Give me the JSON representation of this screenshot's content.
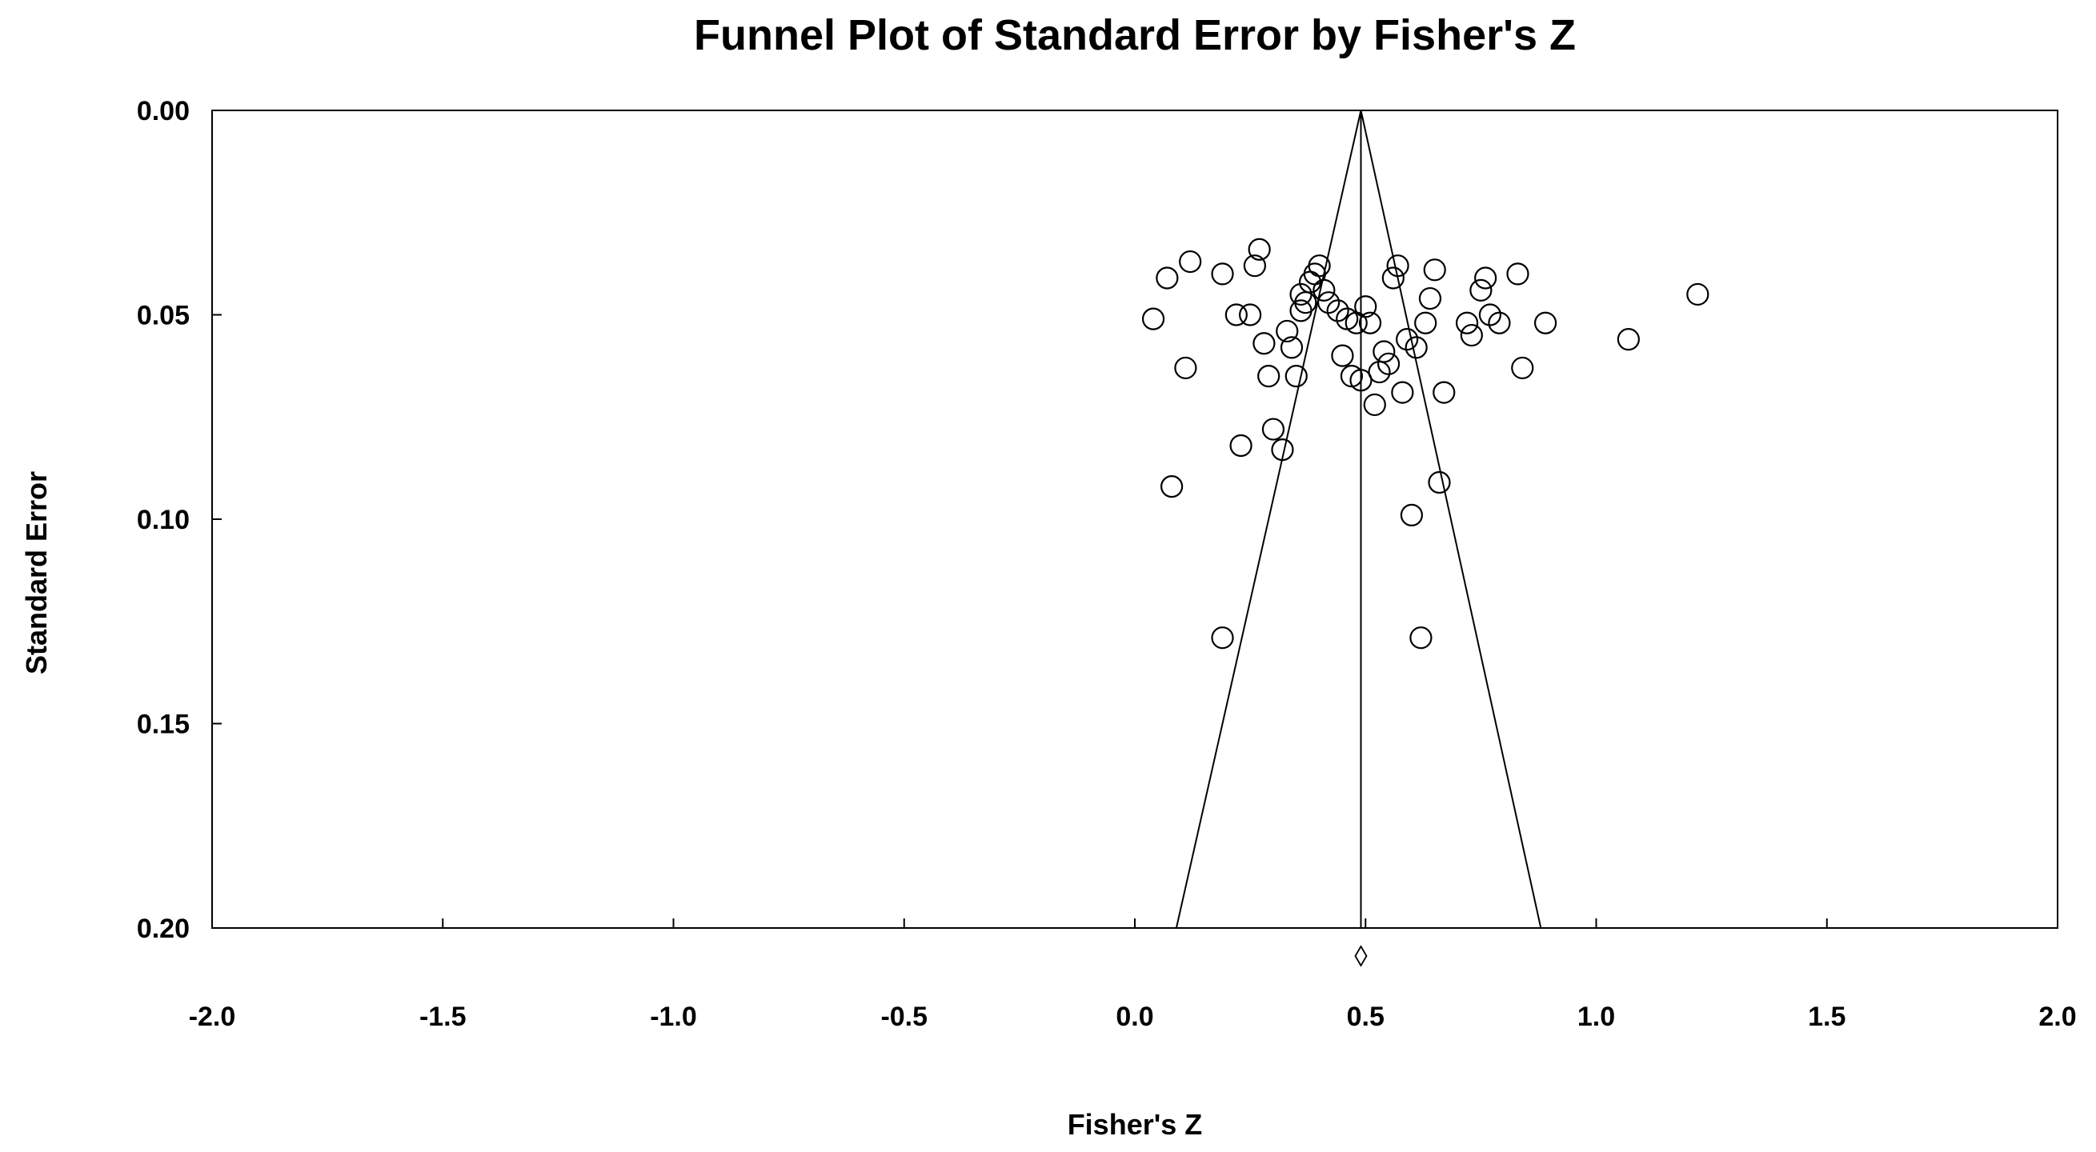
{
  "chart_data": {
    "type": "scatter",
    "title": "Funnel Plot of Standard Error by Fisher's Z",
    "xlabel": "Fisher's Z",
    "ylabel": "Standard Error",
    "xlim": [
      -2.0,
      2.0
    ],
    "ylim": [
      0.0,
      0.2
    ],
    "y_inverted": true,
    "x_ticks": [
      "-2.0",
      "-1.5",
      "-1.0",
      "-0.5",
      "0.0",
      "0.5",
      "1.0",
      "1.5",
      "2.0"
    ],
    "y_ticks": [
      "0.00",
      "0.05",
      "0.10",
      "0.15",
      "0.20"
    ],
    "grid": false,
    "legend": "none",
    "summary_effect": 0.49,
    "funnel": {
      "apex": [
        0.49,
        0.0
      ],
      "left_base": [
        0.09,
        0.2
      ],
      "right_base": [
        0.88,
        0.2
      ]
    },
    "points": [
      {
        "x": 0.04,
        "y": 0.051
      },
      {
        "x": 0.07,
        "y": 0.041
      },
      {
        "x": 0.08,
        "y": 0.092
      },
      {
        "x": 0.11,
        "y": 0.063
      },
      {
        "x": 0.12,
        "y": 0.037
      },
      {
        "x": 0.19,
        "y": 0.04
      },
      {
        "x": 0.19,
        "y": 0.129
      },
      {
        "x": 0.22,
        "y": 0.05
      },
      {
        "x": 0.23,
        "y": 0.082
      },
      {
        "x": 0.25,
        "y": 0.05
      },
      {
        "x": 0.26,
        "y": 0.038
      },
      {
        "x": 0.27,
        "y": 0.034
      },
      {
        "x": 0.28,
        "y": 0.057
      },
      {
        "x": 0.29,
        "y": 0.065
      },
      {
        "x": 0.3,
        "y": 0.078
      },
      {
        "x": 0.32,
        "y": 0.083
      },
      {
        "x": 0.33,
        "y": 0.054
      },
      {
        "x": 0.34,
        "y": 0.058
      },
      {
        "x": 0.35,
        "y": 0.065
      },
      {
        "x": 0.36,
        "y": 0.045
      },
      {
        "x": 0.36,
        "y": 0.049
      },
      {
        "x": 0.37,
        "y": 0.047
      },
      {
        "x": 0.38,
        "y": 0.042
      },
      {
        "x": 0.39,
        "y": 0.04
      },
      {
        "x": 0.4,
        "y": 0.038
      },
      {
        "x": 0.41,
        "y": 0.044
      },
      {
        "x": 0.42,
        "y": 0.047
      },
      {
        "x": 0.44,
        "y": 0.049
      },
      {
        "x": 0.45,
        "y": 0.06
      },
      {
        "x": 0.46,
        "y": 0.051
      },
      {
        "x": 0.47,
        "y": 0.065
      },
      {
        "x": 0.48,
        "y": 0.052
      },
      {
        "x": 0.49,
        "y": 0.066
      },
      {
        "x": 0.5,
        "y": 0.048
      },
      {
        "x": 0.51,
        "y": 0.052
      },
      {
        "x": 0.52,
        "y": 0.072
      },
      {
        "x": 0.53,
        "y": 0.064
      },
      {
        "x": 0.54,
        "y": 0.059
      },
      {
        "x": 0.55,
        "y": 0.062
      },
      {
        "x": 0.56,
        "y": 0.041
      },
      {
        "x": 0.57,
        "y": 0.038
      },
      {
        "x": 0.58,
        "y": 0.069
      },
      {
        "x": 0.59,
        "y": 0.056
      },
      {
        "x": 0.6,
        "y": 0.099
      },
      {
        "x": 0.61,
        "y": 0.058
      },
      {
        "x": 0.62,
        "y": 0.129
      },
      {
        "x": 0.63,
        "y": 0.052
      },
      {
        "x": 0.64,
        "y": 0.046
      },
      {
        "x": 0.65,
        "y": 0.039
      },
      {
        "x": 0.66,
        "y": 0.091
      },
      {
        "x": 0.67,
        "y": 0.069
      },
      {
        "x": 0.72,
        "y": 0.052
      },
      {
        "x": 0.73,
        "y": 0.055
      },
      {
        "x": 0.75,
        "y": 0.044
      },
      {
        "x": 0.76,
        "y": 0.041
      },
      {
        "x": 0.77,
        "y": 0.05
      },
      {
        "x": 0.79,
        "y": 0.052
      },
      {
        "x": 0.83,
        "y": 0.04
      },
      {
        "x": 0.84,
        "y": 0.063
      },
      {
        "x": 0.89,
        "y": 0.052
      },
      {
        "x": 1.07,
        "y": 0.056
      },
      {
        "x": 1.22,
        "y": 0.045
      }
    ]
  }
}
